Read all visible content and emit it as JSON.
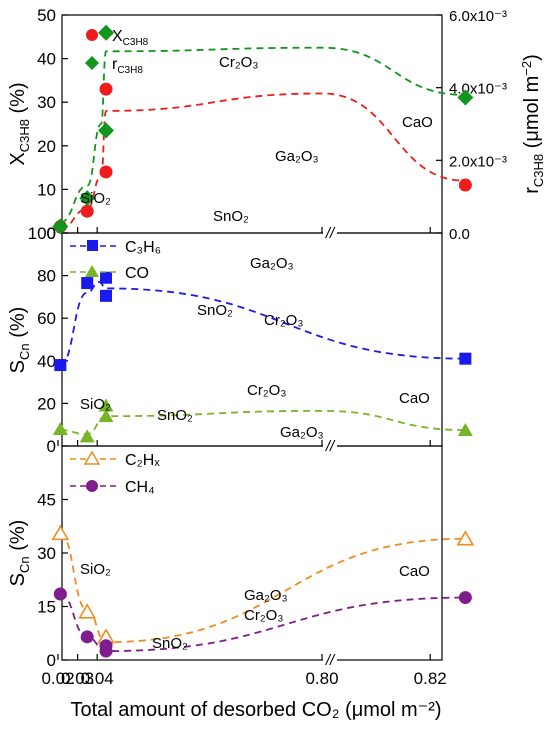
{
  "figure": {
    "x_axis_title": "Total amount of desorbed CO₂ (μmol m⁻²)",
    "x_tick_labels": [
      "0.02",
      "0.03",
      "0.04",
      "0.80",
      "0.82"
    ],
    "break_mark": "//"
  },
  "chart_data": [
    {
      "type": "scatter",
      "panel": "top",
      "x_categories": [
        "0.02",
        "0.03",
        "0.04",
        "0.80",
        "0.82"
      ],
      "ylabel_left": "X_C3H8 (%)",
      "ylabel_right": "r_C3H8 (μmol m⁻²)",
      "ylim_left": [
        0,
        50
      ],
      "ylim_right": [
        0,
        0.006
      ],
      "y_ticks_left": [
        "0",
        "10",
        "20",
        "30",
        "40",
        "50"
      ],
      "y_ticks_right": [
        "0.0",
        "2.0x10⁻³",
        "4.0x10⁻³",
        "6.0x10⁻³"
      ],
      "legend": [
        {
          "label": "X_C3H8",
          "color": "#ee1c1c",
          "marker": "circle"
        },
        {
          "label": "r_C3H8",
          "color": "#12961e",
          "marker": "diamond"
        }
      ],
      "series": [
        {
          "name": "X_C3H8",
          "axis": "left",
          "color": "#ee1c1c",
          "marker": "circle",
          "points": [
            {
              "x": 0.0212,
              "y": 1.5,
              "label": "SiO2"
            },
            {
              "x": 0.0349,
              "y": 5.0,
              "label": "SnO2"
            },
            {
              "x": 0.0445,
              "y": 14.0,
              "label": "Ga2O3"
            },
            {
              "x": 0.0445,
              "y": 33.0,
              "label": "Cr2O3"
            },
            {
              "x": 0.8265,
              "y": 11.0,
              "label": "CaO"
            }
          ]
        },
        {
          "name": "r_C3H8",
          "axis": "right",
          "color": "#12961e",
          "marker": "diamond",
          "points": [
            {
              "x": 0.0212,
              "y": 0.00018,
              "label": "SiO2"
            },
            {
              "x": 0.0349,
              "y": 0.00096,
              "label": "SnO2"
            },
            {
              "x": 0.0445,
              "y": 0.00282,
              "label": "Ga2O3"
            },
            {
              "x": 0.0445,
              "y": 0.00551,
              "label": "Cr2O3"
            },
            {
              "x": 0.8265,
              "y": 0.00373,
              "label": "CaO"
            }
          ]
        }
      ],
      "annotations": [
        "SiO₂",
        "SnO₂",
        "Ga₂O₃",
        "Cr₂O₃",
        "CaO"
      ]
    },
    {
      "type": "scatter",
      "panel": "middle",
      "ylabel": "S_Cn (%)",
      "ylim": [
        0,
        100
      ],
      "y_ticks": [
        "0",
        "20",
        "40",
        "60",
        "80",
        "100"
      ],
      "legend": [
        {
          "label": "C₃H₆",
          "color": "#1a1aee",
          "marker": "square"
        },
        {
          "label": "CO",
          "color": "#78b428",
          "marker": "triangle"
        }
      ],
      "series": [
        {
          "name": "C3H6",
          "color": "#1a1aee",
          "marker": "square",
          "points": [
            {
              "x": 0.0212,
              "y": 38.0,
              "label": "SiO2"
            },
            {
              "x": 0.0349,
              "y": 76.5,
              "label": "SnO2"
            },
            {
              "x": 0.0445,
              "y": 79.0,
              "label": "Ga2O3"
            },
            {
              "x": 0.0445,
              "y": 70.5,
              "label": "Cr2O3"
            },
            {
              "x": 0.8265,
              "y": 41.0,
              "label": "CaO"
            }
          ]
        },
        {
          "name": "CO",
          "color": "#78b428",
          "marker": "triangle",
          "points": [
            {
              "x": 0.0212,
              "y": 8.0,
              "label": "SiO2"
            },
            {
              "x": 0.0349,
              "y": 4.5,
              "label": "SnO2"
            },
            {
              "x": 0.0445,
              "y": 19.0,
              "label": "Cr2O3"
            },
            {
              "x": 0.0445,
              "y": 14.0,
              "label": "Ga2O3"
            },
            {
              "x": 0.8265,
              "y": 7.5,
              "label": "CaO"
            }
          ]
        }
      ],
      "annotations": [
        "Ga₂O₃",
        "SnO₂",
        "Cr₂O₃",
        "SiO₂",
        "SnO₂",
        "Cr₂O₃",
        "Ga₂O₃",
        "CaO"
      ]
    },
    {
      "type": "scatter",
      "panel": "bottom",
      "ylabel": "S_Cn (%)",
      "ylim": [
        0,
        60
      ],
      "y_ticks": [
        "0",
        "15",
        "30",
        "45"
      ],
      "legend": [
        {
          "label": "C₂Hₓ",
          "color": "#f08c1e",
          "marker": "open-triangle"
        },
        {
          "label": "CH₄",
          "color": "#7d1e8c",
          "marker": "circle"
        }
      ],
      "series": [
        {
          "name": "C2Hx",
          "color": "#f08c1e",
          "marker": "open-triangle",
          "points": [
            {
              "x": 0.0212,
              "y": 35.5,
              "label": "SiO2"
            },
            {
              "x": 0.0349,
              "y": 13.5,
              "label": "SnO2"
            },
            {
              "x": 0.0445,
              "y": 6.5,
              "label": "Ga2O3/Cr2O3"
            },
            {
              "x": 0.8265,
              "y": 34.0,
              "label": "CaO"
            }
          ]
        },
        {
          "name": "CH4",
          "color": "#7d1e8c",
          "marker": "circle",
          "points": [
            {
              "x": 0.0212,
              "y": 18.5,
              "label": "SiO2"
            },
            {
              "x": 0.0349,
              "y": 6.5,
              "label": "SnO2"
            },
            {
              "x": 0.0445,
              "y": 4.0,
              "label": "Ga2O3"
            },
            {
              "x": 0.0445,
              "y": 2.5,
              "label": "Cr2O3"
            },
            {
              "x": 0.8265,
              "y": 17.5,
              "label": "CaO"
            }
          ]
        }
      ],
      "annotations": [
        "SiO₂",
        "SnO₂",
        "Ga₂O₃",
        "Cr₂O₃",
        "CaO"
      ]
    }
  ]
}
